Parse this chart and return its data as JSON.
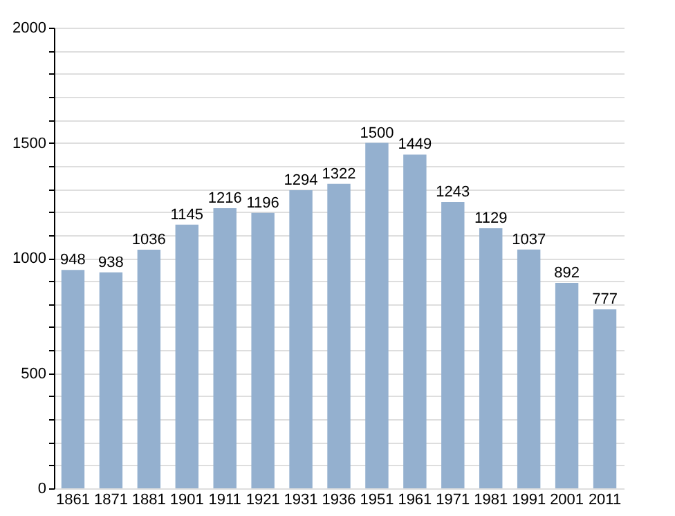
{
  "chart_data": {
    "type": "bar",
    "categories": [
      "1861",
      "1871",
      "1881",
      "1901",
      "1911",
      "1921",
      "1931",
      "1936",
      "1951",
      "1961",
      "1971",
      "1981",
      "1991",
      "2001",
      "2011"
    ],
    "values": [
      948,
      938,
      1036,
      1145,
      1216,
      1196,
      1294,
      1322,
      1500,
      1449,
      1243,
      1129,
      1037,
      892,
      777
    ],
    "color": "#94b0cf",
    "ylim": [
      0,
      2000
    ],
    "yticks": [
      0,
      {
        "value": 100,
        "label": null
      },
      {
        "value": 200,
        "label": null
      },
      {
        "value": 300,
        "label": null
      },
      {
        "value": 400,
        "label": null
      },
      500,
      {
        "value": 600,
        "label": null
      },
      {
        "value": 700,
        "label": null
      },
      {
        "value": 800,
        "label": null
      },
      {
        "value": 900,
        "label": null
      },
      1000,
      {
        "value": 1100,
        "label": null
      },
      {
        "value": 1200,
        "label": null
      },
      {
        "value": 1300,
        "label": null
      },
      {
        "value": 1400,
        "label": null
      },
      1500,
      {
        "value": 1600,
        "label": null
      },
      {
        "value": 1700,
        "label": null
      },
      {
        "value": 1800,
        "label": null
      },
      {
        "value": 1900,
        "label": null
      },
      2000
    ],
    "grid": true,
    "data_labels": true
  }
}
